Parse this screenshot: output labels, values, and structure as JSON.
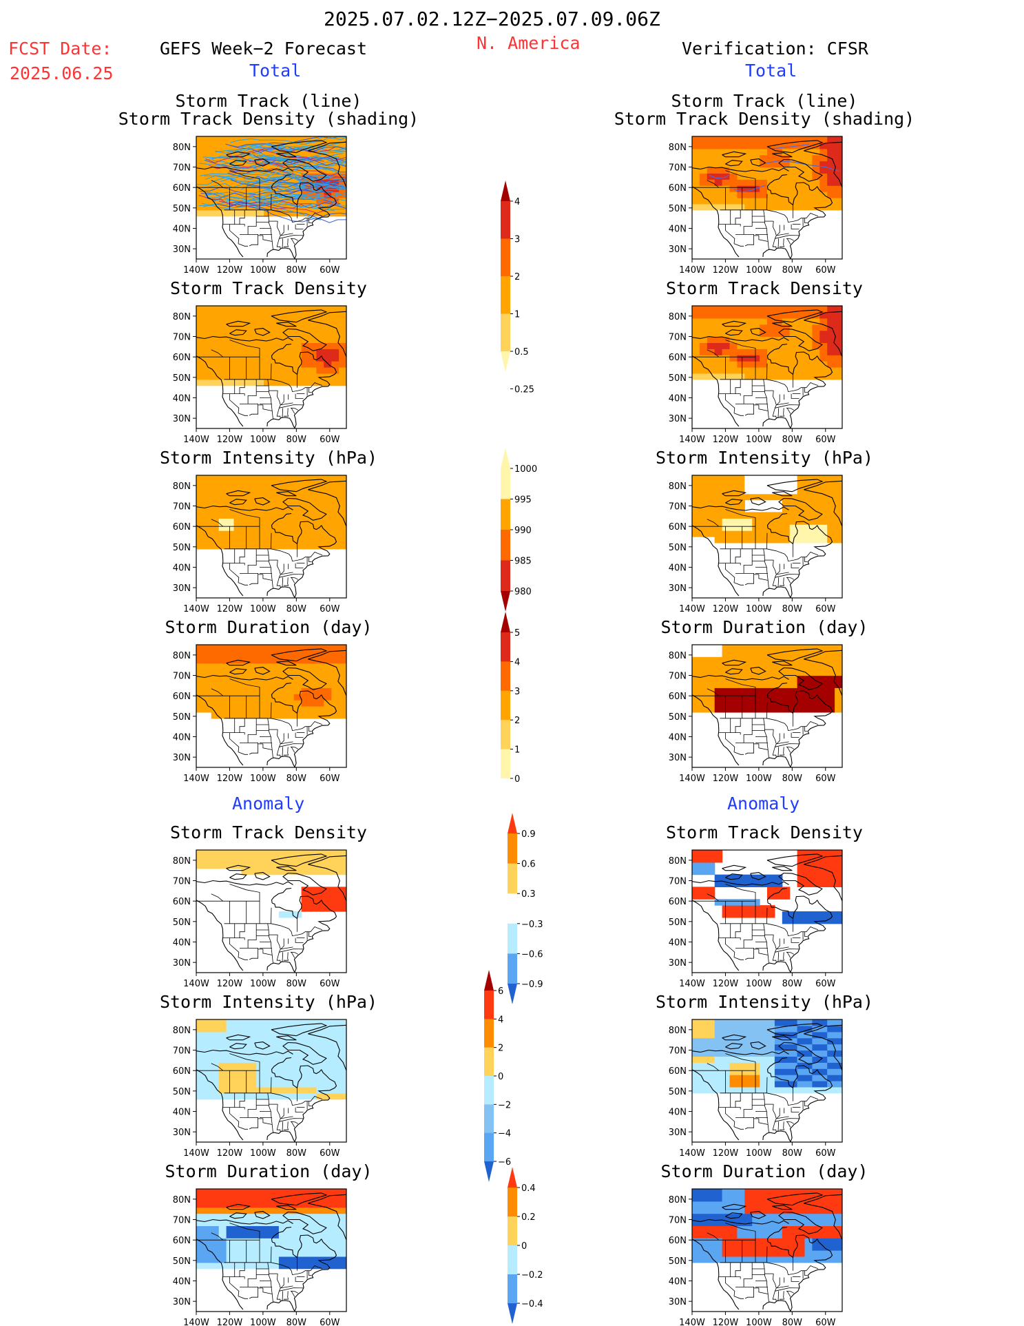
{
  "header": {
    "period": "2025.07.02.12Z−2025.07.09.06Z",
    "fcst_label": "FCST Date:",
    "fcst_date": "2025.06.25",
    "region": "N. America",
    "left_title": "GEFS Week−2 Forecast",
    "right_title": "Verification: CFSR",
    "total_left": "Total",
    "total_right": "Total",
    "anomaly_left": "Anomaly",
    "anomaly_right": "Anomaly"
  },
  "axes": {
    "lat_ticks": [
      "80N",
      "70N",
      "60N",
      "50N",
      "40N",
      "30N"
    ],
    "lon_ticks": [
      "140W",
      "120W",
      "100W",
      "80W",
      "60W"
    ]
  },
  "panels": {
    "left": [
      {
        "title1": "Storm Track (line)",
        "title2": "Storm Track Density (shading)"
      },
      {
        "title1": "Storm Track Density"
      },
      {
        "title1": "Storm Intensity (hPa)"
      },
      {
        "title1": "Storm Duration (day)"
      },
      {
        "title1": "Storm Track Density"
      },
      {
        "title1": "Storm Intensity (hPa)"
      },
      {
        "title1": "Storm Duration (day)"
      }
    ],
    "right": [
      {
        "title1": "Storm Track (line)",
        "title2": "Storm Track Density (shading)"
      },
      {
        "title1": "Storm Track Density"
      },
      {
        "title1": "Storm Intensity (hPa)"
      },
      {
        "title1": "Storm Duration (day)"
      },
      {
        "title1": "Storm Track Density"
      },
      {
        "title1": "Storm Intensity (hPa)"
      },
      {
        "title1": "Storm Duration (day)"
      }
    ]
  },
  "colorbars": [
    {
      "id": "density_total",
      "labels": [
        "4",
        "3",
        "2",
        "1",
        "0.5",
        "0.25"
      ],
      "colors": [
        "#a50000",
        "#dd2a1a",
        "#ff6a00",
        "#ffa400",
        "#ffd35a",
        "#fff6ac"
      ]
    },
    {
      "id": "intensity_total",
      "labels": [
        "1000",
        "995",
        "990",
        "985",
        "980"
      ],
      "colors": [
        "#fff6ac",
        "#ffa400",
        "#ff6a00",
        "#dd2a1a",
        "#a50000"
      ]
    },
    {
      "id": "duration_total",
      "labels": [
        "5",
        "4",
        "3",
        "2",
        "1",
        "0"
      ],
      "colors": [
        "#a50000",
        "#dd2a1a",
        "#ff6a00",
        "#ffa400",
        "#ffd35a",
        "#fff6ac"
      ]
    },
    {
      "id": "density_anom",
      "labels": [
        "0.9",
        "0.6",
        "0.3",
        "−0.3",
        "−0.6",
        "−0.9"
      ],
      "colors": [
        "#ff3a10",
        "#ff8c00",
        "#ffd35a",
        "#ffffff",
        "#b6ecff",
        "#5aa6f2",
        "#2063d0"
      ]
    },
    {
      "id": "intensity_anom",
      "labels": [
        "6",
        "4",
        "2",
        "0",
        "−2",
        "−4",
        "−6"
      ],
      "colors": [
        "#a50000",
        "#ff3a10",
        "#ff8c00",
        "#ffd35a",
        "#b6ecff",
        "#84c2f4",
        "#5aa6f2",
        "#2063d0"
      ]
    },
    {
      "id": "duration_anom",
      "labels": [
        "0.4",
        "0.2",
        "0",
        "−0.2",
        "−0.4"
      ],
      "colors": [
        "#ff3a10",
        "#ff8c00",
        "#ffd35a",
        "#b6ecff",
        "#5aa6f2",
        "#2063d0"
      ]
    }
  ],
  "chart_data": {
    "type": "heatmap",
    "region": "N. America",
    "lat_range": [
      25,
      85
    ],
    "lon_range": [
      -140,
      -50
    ],
    "fields": [
      "Storm Track Density",
      "Storm Intensity (hPa)",
      "Storm Duration (day)"
    ]
  }
}
